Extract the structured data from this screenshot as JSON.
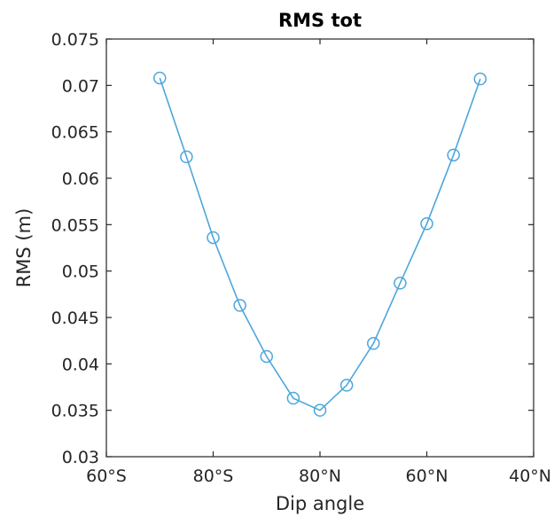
{
  "chart_data": {
    "type": "line",
    "title": "RMS tot",
    "xlabel": "Dip angle",
    "ylabel": "RMS (m)",
    "xlim": [
      60,
      120
    ],
    "ylim": [
      0.03,
      0.075
    ],
    "x_ticks": [
      {
        "value": 60,
        "label": "60°S"
      },
      {
        "value": 80,
        "label": "80°S"
      },
      {
        "value": 100,
        "label": "80°N"
      },
      {
        "value": 120,
        "label": "60°N"
      },
      {
        "value": 140,
        "label": "40°N"
      }
    ],
    "y_ticks": [
      {
        "value": 0.03,
        "label": "0.03"
      },
      {
        "value": 0.035,
        "label": "0.035"
      },
      {
        "value": 0.04,
        "label": "0.04"
      },
      {
        "value": 0.045,
        "label": "0.045"
      },
      {
        "value": 0.05,
        "label": "0.05"
      },
      {
        "value": 0.055,
        "label": "0.055"
      },
      {
        "value": 0.06,
        "label": "0.06"
      },
      {
        "value": 0.065,
        "label": "0.065"
      },
      {
        "value": 0.07,
        "label": "0.07"
      },
      {
        "value": 0.075,
        "label": "0.075"
      }
    ],
    "grid": false,
    "line_color": "#4da6dc",
    "marker": "open-circle",
    "series": [
      {
        "x": [
          70,
          75,
          80,
          85,
          90,
          95,
          100,
          105,
          110,
          115,
          120,
          125,
          130
        ],
        "y": [
          0.0708,
          0.0623,
          0.0536,
          0.0463,
          0.0408,
          0.0363,
          0.035,
          0.0377,
          0.0422,
          0.0487,
          0.0551,
          0.0625,
          0.0707
        ]
      }
    ]
  }
}
